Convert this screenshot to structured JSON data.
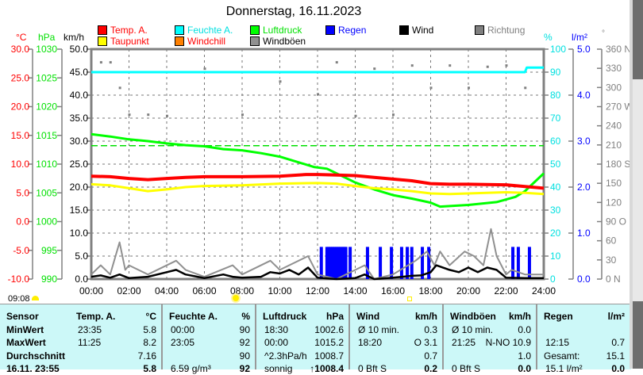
{
  "title": "Donnerstag, 16.11.2023",
  "legend": [
    {
      "label": "Temp. A.",
      "color": "#ff0000",
      "text_color": "#ff0000"
    },
    {
      "label": "Feuchte A.",
      "color": "#00ffff",
      "text_color": "#00e0e0"
    },
    {
      "label": "Luftdruck",
      "color": "#00ff00",
      "text_color": "#00e000"
    },
    {
      "label": "Regen",
      "color": "#0000ff",
      "text_color": "#0000ff"
    },
    {
      "label": "Wind",
      "color": "#000000",
      "text_color": "#000000"
    },
    {
      "label": "Richtung",
      "color": "#808080",
      "text_color": "#808080"
    },
    {
      "label": "Taupunkt",
      "color": "#ffff00",
      "text_color": "#ff0000"
    },
    {
      "label": "Windchill",
      "color": "#ff8000",
      "text_color": "#ff0000"
    },
    {
      "label": "Windböen",
      "color": "#909090",
      "text_color": "#000000"
    }
  ],
  "units": {
    "temp": "°C",
    "pressure": "hPa",
    "wind": "km/h",
    "humidity": "%",
    "rain": "l/m²",
    "direction": "°"
  },
  "sun": {
    "time": "09:08"
  },
  "chart_data": {
    "type": "line",
    "title": "Donnerstag, 16.11.2023",
    "x_range": [
      0,
      24
    ],
    "x_ticks": [
      "00:00",
      "02:00",
      "04:00",
      "06:00",
      "08:00",
      "10:00",
      "12:00",
      "14:00",
      "16:00",
      "18:00",
      "20:00",
      "22:00",
      "24:00"
    ],
    "axes": {
      "temp": {
        "range": [
          -10,
          30
        ],
        "ticks": [
          "30.0",
          "25.0",
          "20.0",
          "15.0",
          "10.0",
          "5.0",
          "0.0",
          "-5.0",
          "-10.0"
        ]
      },
      "pressure": {
        "range": [
          990,
          1030
        ],
        "ticks": [
          "1030",
          "1025",
          "1020",
          "1015",
          "1010",
          "1005",
          "1000",
          "995",
          "990"
        ]
      },
      "wind": {
        "range": [
          0,
          50
        ],
        "ticks": [
          "50.0",
          "45.0",
          "40.0",
          "35.0",
          "30.0",
          "25.0",
          "20.0",
          "15.0",
          "10.0",
          "5.0",
          "0.0"
        ]
      },
      "humidity": {
        "range": [
          0,
          100
        ],
        "ticks": [
          "100",
          "90",
          "80",
          "70",
          "60",
          "50",
          "40",
          "30",
          "20",
          "10",
          "0"
        ]
      },
      "rain": {
        "range": [
          0,
          5
        ],
        "ticks": [
          "5.0",
          "4.0",
          "3.0",
          "2.0",
          "1.0",
          "0.0"
        ]
      },
      "direction": {
        "range": [
          0,
          360
        ],
        "ticks": [
          "360 N",
          "330",
          "300",
          "270 W",
          "240",
          "210",
          "180 S",
          "150",
          "120",
          "90  O",
          "60",
          "30",
          "0   N"
        ]
      }
    },
    "series": [
      {
        "name": "Temp. A.",
        "axis": "temp",
        "color": "#ff0000",
        "points": [
          [
            0,
            7.9
          ],
          [
            1,
            7.8
          ],
          [
            2,
            7.5
          ],
          [
            3,
            7.3
          ],
          [
            4,
            7.5
          ],
          [
            5,
            7.7
          ],
          [
            6,
            7.8
          ],
          [
            8,
            7.8
          ],
          [
            10,
            7.9
          ],
          [
            11.4,
            8.2
          ],
          [
            12,
            8.2
          ],
          [
            13,
            8.1
          ],
          [
            14,
            8.0
          ],
          [
            15,
            7.7
          ],
          [
            16,
            7.4
          ],
          [
            17,
            7.1
          ],
          [
            18,
            6.6
          ],
          [
            19,
            6.5
          ],
          [
            20,
            6.5
          ],
          [
            22,
            6.4
          ],
          [
            23,
            6.1
          ],
          [
            24,
            5.8
          ]
        ]
      },
      {
        "name": "Taupunkt",
        "axis": "temp",
        "color": "#ffff00",
        "points": [
          [
            0,
            6.5
          ],
          [
            1,
            6.3
          ],
          [
            2,
            5.8
          ],
          [
            3,
            5.3
          ],
          [
            4,
            5.6
          ],
          [
            5,
            6.0
          ],
          [
            6,
            6.2
          ],
          [
            8,
            6.3
          ],
          [
            10,
            6.6
          ],
          [
            12,
            6.7
          ],
          [
            13,
            6.6
          ],
          [
            14,
            6.2
          ],
          [
            15,
            5.8
          ],
          [
            16,
            5.6
          ],
          [
            17,
            5.3
          ],
          [
            18,
            4.9
          ],
          [
            19,
            4.8
          ],
          [
            20,
            4.9
          ],
          [
            22,
            5.1
          ],
          [
            23,
            5.0
          ],
          [
            24,
            4.8
          ]
        ]
      },
      {
        "name": "Luftdruck",
        "axis": "pressure",
        "color": "#00ff00",
        "points": [
          [
            0,
            1015.2
          ],
          [
            1,
            1014.8
          ],
          [
            2,
            1014.3
          ],
          [
            3,
            1014.0
          ],
          [
            4,
            1013.6
          ],
          [
            5,
            1013.3
          ],
          [
            6,
            1013.1
          ],
          [
            7,
            1012.6
          ],
          [
            8,
            1012.4
          ],
          [
            9,
            1011.9
          ],
          [
            10,
            1011.3
          ],
          [
            11,
            1010.3
          ],
          [
            11.8,
            1009.5
          ],
          [
            12.5,
            1009.2
          ],
          [
            13,
            1008.4
          ],
          [
            14,
            1006.8
          ],
          [
            15,
            1005.6
          ],
          [
            16,
            1004.6
          ],
          [
            17,
            1004.0
          ],
          [
            18,
            1003.3
          ],
          [
            18.5,
            1002.6
          ],
          [
            20,
            1002.9
          ],
          [
            21.5,
            1003.4
          ],
          [
            22.5,
            1004.3
          ],
          [
            23,
            1005.3
          ],
          [
            24,
            1008.4
          ]
        ]
      },
      {
        "name": "Feuchte A.",
        "axis": "humidity",
        "color": "#00ffff",
        "points": [
          [
            0,
            90
          ],
          [
            23,
            90
          ],
          [
            23.1,
            92
          ],
          [
            24,
            92
          ]
        ]
      },
      {
        "name": "Wind",
        "axis": "wind",
        "color": "#000000",
        "points": [
          [
            0,
            0.5
          ],
          [
            0.5,
            0.8
          ],
          [
            1,
            0.3
          ],
          [
            1.5,
            1
          ],
          [
            2,
            0.2
          ],
          [
            3,
            0.5
          ],
          [
            4,
            1.5
          ],
          [
            4.5,
            2
          ],
          [
            5,
            1
          ],
          [
            6,
            0.2
          ],
          [
            7,
            1
          ],
          [
            7.5,
            0.5
          ],
          [
            8,
            0.3
          ],
          [
            9,
            0.5
          ],
          [
            9.5,
            1.5
          ],
          [
            10,
            1.2
          ],
          [
            10.5,
            2
          ],
          [
            11,
            1
          ],
          [
            11.5,
            2.5
          ],
          [
            12,
            0.3
          ],
          [
            13,
            0
          ],
          [
            14,
            0.2
          ],
          [
            14.5,
            1
          ],
          [
            15,
            0
          ],
          [
            16,
            0.3
          ],
          [
            17,
            0.7
          ],
          [
            17.5,
            0.8
          ],
          [
            18,
            1.5
          ],
          [
            18.3,
            3
          ],
          [
            19,
            2
          ],
          [
            19.5,
            1.5
          ],
          [
            20,
            2.5
          ],
          [
            20.5,
            1.5
          ],
          [
            21,
            2.5
          ],
          [
            21.5,
            2
          ],
          [
            22,
            0.3
          ],
          [
            23,
            0.2
          ],
          [
            24,
            0.2
          ]
        ]
      },
      {
        "name": "Windböen",
        "axis": "wind",
        "color": "#909090",
        "points": [
          [
            0,
            1
          ],
          [
            0.5,
            3
          ],
          [
            1,
            1
          ],
          [
            1.5,
            8
          ],
          [
            1.8,
            2
          ],
          [
            2,
            3
          ],
          [
            3,
            1
          ],
          [
            4.5,
            4
          ],
          [
            5,
            2
          ],
          [
            6,
            0.5
          ],
          [
            7.5,
            3
          ],
          [
            8,
            1
          ],
          [
            9.5,
            4
          ],
          [
            10,
            2
          ],
          [
            11.5,
            5
          ],
          [
            12,
            1
          ],
          [
            13,
            0
          ],
          [
            14.5,
            3
          ],
          [
            15,
            0
          ],
          [
            16,
            1
          ],
          [
            17.2,
            4
          ],
          [
            17.8,
            6
          ],
          [
            18.2,
            3
          ],
          [
            18.5,
            6
          ],
          [
            19,
            3
          ],
          [
            19.8,
            6
          ],
          [
            20.3,
            5
          ],
          [
            20.8,
            3
          ],
          [
            21.2,
            10.9
          ],
          [
            21.5,
            5
          ],
          [
            22,
            1
          ],
          [
            22.3,
            2
          ],
          [
            23,
            1
          ],
          [
            24,
            1
          ]
        ]
      }
    ],
    "rain_bars": {
      "name": "Regen",
      "axis": "rain",
      "color": "#0000ff",
      "value": 0.7,
      "times": [
        12.2,
        12.5,
        12.6,
        12.7,
        12.8,
        12.9,
        13.0,
        13.1,
        13.2,
        13.3,
        13.4,
        13.5,
        13.73,
        14.65,
        15.33,
        15.92,
        16.46,
        16.76,
        17.0,
        17.56,
        17.9,
        22.36,
        22.65,
        23.24
      ]
    },
    "direction_dots": {
      "name": "Richtung",
      "axis": "direction",
      "color": "#808080",
      "points": [
        [
          0.5,
          340
        ],
        [
          1,
          340
        ],
        [
          1.5,
          300
        ],
        [
          2,
          258
        ],
        [
          3,
          258
        ],
        [
          4,
          256
        ],
        [
          6,
          330
        ],
        [
          8,
          258
        ],
        [
          10,
          310
        ],
        [
          12,
          290
        ],
        [
          13,
          340
        ],
        [
          14,
          256
        ],
        [
          15,
          330
        ],
        [
          16,
          258
        ],
        [
          17,
          335
        ],
        [
          18,
          300
        ],
        [
          19,
          335
        ],
        [
          20,
          300
        ],
        [
          21,
          333
        ],
        [
          22,
          335
        ],
        [
          23,
          300
        ]
      ]
    },
    "mean_pressure_line": {
      "axis": "pressure",
      "value": 1013.2,
      "color": "#00ff00",
      "style": "dashed"
    }
  },
  "table": {
    "headers": [
      {
        "label": "Sensor",
        "unit": ""
      },
      {
        "label": "Temp. A.",
        "unit": "°C"
      },
      {
        "label": "Feuchte A.",
        "unit": "%"
      },
      {
        "label": "Luftdruck",
        "unit": "hPa"
      },
      {
        "label": "Wind",
        "unit": "km/h"
      },
      {
        "label": "Windböen",
        "unit": "km/h"
      },
      {
        "label": "Regen",
        "unit": "l/m²"
      }
    ],
    "rows": [
      {
        "label": "MinWert",
        "cells": [
          [
            "23:35",
            "5.8"
          ],
          [
            "00:00",
            "90"
          ],
          [
            "18:30",
            "1002.6"
          ],
          [
            "Ø 10 min.",
            "0.3"
          ],
          [
            "Ø 10 min.",
            "0.0"
          ],
          [
            "",
            ""
          ]
        ]
      },
      {
        "label": "MaxWert",
        "cells": [
          [
            "11:25",
            "8.2"
          ],
          [
            "23:05",
            "92"
          ],
          [
            "00:00",
            "1015.2"
          ],
          [
            "18:20",
            "O 3.1"
          ],
          [
            "21:25",
            "N-NO 10.9"
          ],
          [
            "12:15",
            "0.7"
          ]
        ]
      },
      {
        "label": "Durchschnitt",
        "cells": [
          [
            "",
            "7.16"
          ],
          [
            "",
            "90"
          ],
          [
            "^2.3hPa/h",
            "1008.7"
          ],
          [
            "",
            "0.7"
          ],
          [
            "",
            "1.0"
          ],
          [
            "Gesamt:",
            "15.1"
          ]
        ]
      },
      {
        "label": "16.11. 23:55",
        "cells": [
          [
            "",
            "5.8"
          ],
          [
            "6.59 g/m³",
            "92"
          ],
          [
            "sonnig",
            "↑1008.4"
          ],
          [
            "0 Bft S",
            "0.2"
          ],
          [
            "0 Bft S",
            "0.0"
          ],
          [
            "15.1 l/m²",
            "0.0"
          ]
        ]
      }
    ]
  }
}
